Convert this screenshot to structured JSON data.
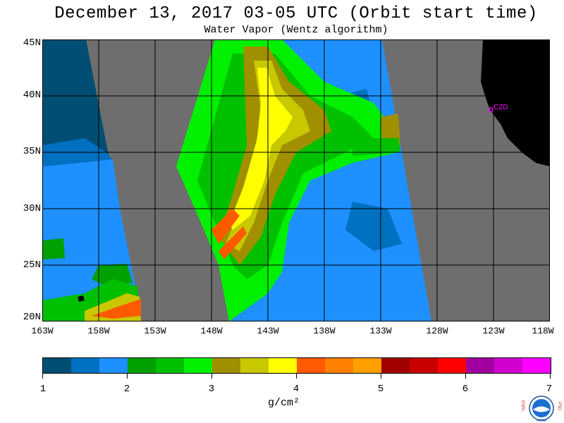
{
  "header": {
    "title": "December 13, 2017  03-05 UTC  (Orbit start time)",
    "subtitle": "Water Vapor (Wentz algorithm)"
  },
  "map": {
    "lat_labels": [
      "45N",
      "40N",
      "35N",
      "30N",
      "25N",
      "20N"
    ],
    "lon_labels": [
      "163W",
      "158W",
      "153W",
      "148W",
      "143W",
      "138W",
      "133W",
      "128W",
      "123W",
      "118W"
    ],
    "station_label": "CZD",
    "colors": {
      "no_data": "#6e6e6e",
      "land": "#000000",
      "grid": "#000000",
      "station": "#ff00ff"
    }
  },
  "colorbar": {
    "tick_labels": [
      "1",
      "2",
      "3",
      "4",
      "5",
      "6",
      "7"
    ],
    "units": "g/cm²",
    "colors": [
      "#004e74",
      "#0070c0",
      "#1e90ff",
      "#00a000",
      "#00c000",
      "#00f000",
      "#a09000",
      "#c8c800",
      "#ffff00",
      "#ff5a00",
      "#ff8000",
      "#ffa000",
      "#a00000",
      "#c80000",
      "#ff0000",
      "#a000a0",
      "#d000d0",
      "#ff00ff"
    ]
  },
  "logo": {
    "left_text": "ESRL",
    "right_text": "PSD",
    "center_text": "NOAA"
  }
}
